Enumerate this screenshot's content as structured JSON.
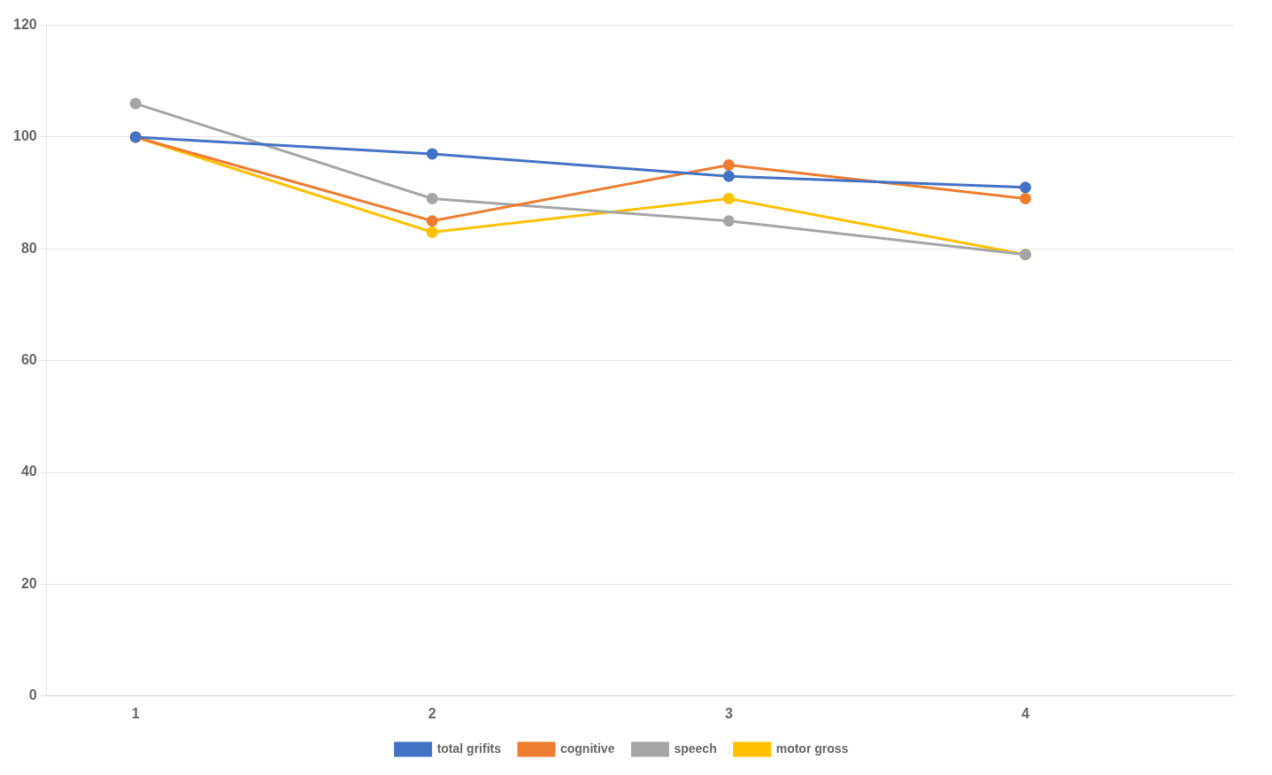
{
  "chart_data": {
    "type": "line",
    "x": [
      1,
      2,
      3,
      4
    ],
    "series": [
      {
        "name": "total grifits",
        "color": "#4472C4",
        "marker": "circle",
        "values": [
          100,
          97,
          93,
          91
        ]
      },
      {
        "name": "cognitive",
        "color": "#ED7D31",
        "marker": "circle",
        "values": [
          100,
          85,
          95,
          89
        ]
      },
      {
        "name": "speech",
        "color": "#A5A5A5",
        "marker": "circle",
        "values": [
          106,
          89,
          85,
          79
        ]
      },
      {
        "name": "motor gross",
        "color": "#FFC000",
        "marker": "circle",
        "values": [
          100,
          83,
          89,
          79
        ]
      }
    ],
    "xlim": [
      0.7,
      4.7
    ],
    "xticks": [
      1,
      2,
      3,
      4
    ],
    "ylim": [
      0,
      120
    ],
    "yticks": [
      0,
      20,
      40,
      60,
      80,
      100,
      120
    ],
    "grid": true,
    "legend": "bottom"
  }
}
